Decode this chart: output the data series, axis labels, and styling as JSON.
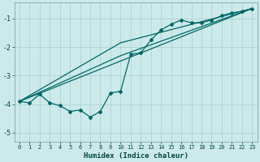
{
  "xlabel": "Humidex (Indice chaleur)",
  "background_color": "#cceaea",
  "grid_color": "#aacece",
  "line_color": "#006666",
  "xlim": [
    -0.5,
    23.5
  ],
  "ylim": [
    -5.3,
    -0.45
  ],
  "yticks": [
    -5,
    -4,
    -3,
    -2,
    -1
  ],
  "xticks": [
    0,
    1,
    2,
    3,
    4,
    5,
    6,
    7,
    8,
    9,
    10,
    11,
    12,
    13,
    14,
    15,
    16,
    17,
    18,
    19,
    20,
    21,
    22,
    23
  ],
  "main_x": [
    0,
    1,
    2,
    3,
    4,
    5,
    6,
    7,
    8,
    9,
    10,
    11,
    12,
    13,
    14,
    15,
    16,
    17,
    18,
    19,
    20,
    21,
    22,
    23
  ],
  "main_y": [
    -3.9,
    -3.95,
    -3.65,
    -3.95,
    -4.05,
    -4.25,
    -4.2,
    -4.45,
    -4.25,
    -3.6,
    -3.55,
    -2.25,
    -2.2,
    -1.75,
    -1.4,
    -1.2,
    -1.05,
    -1.15,
    -1.15,
    -1.05,
    -0.9,
    -0.8,
    -0.75,
    -0.65
  ],
  "line1": {
    "x": [
      0,
      23
    ],
    "y": [
      -3.9,
      -0.65
    ]
  },
  "line2": {
    "x": [
      0,
      10,
      23
    ],
    "y": [
      -3.9,
      -2.3,
      -0.65
    ]
  },
  "line3": {
    "x": [
      0,
      10,
      23
    ],
    "y": [
      -3.9,
      -1.85,
      -0.65
    ]
  }
}
